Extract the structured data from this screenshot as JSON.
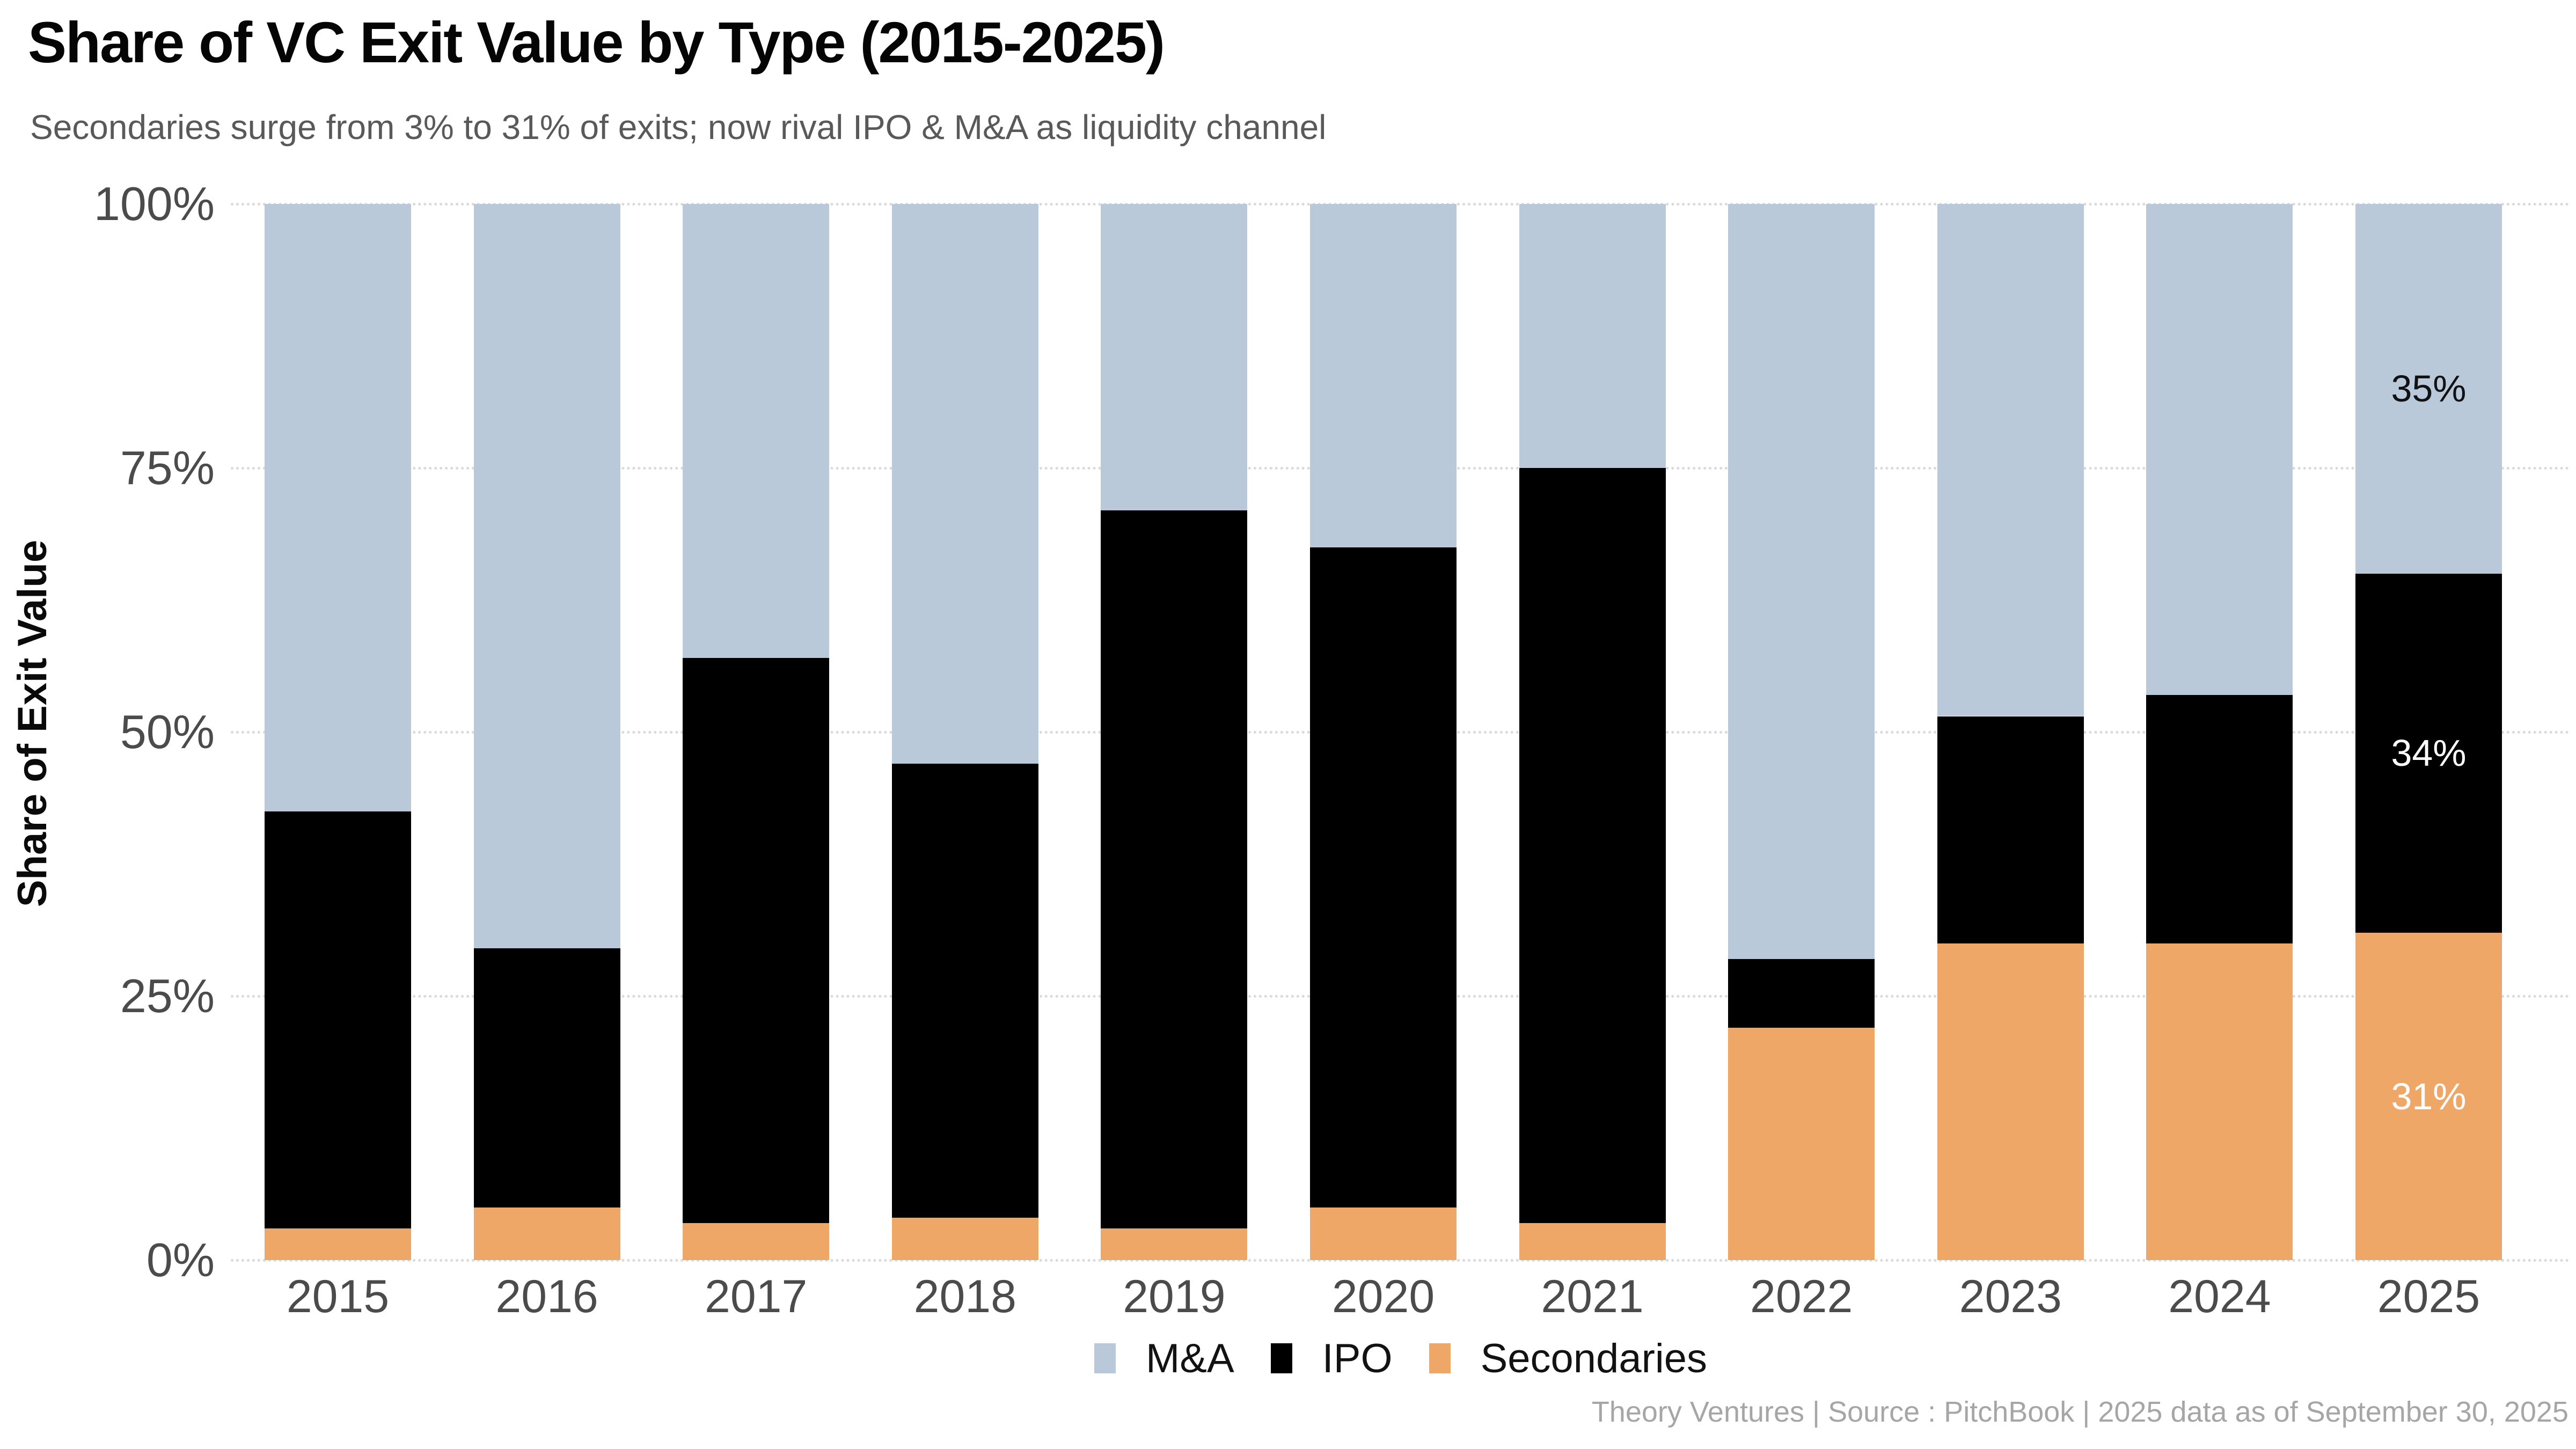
{
  "header": {
    "title": "Share of VC Exit Value by Type (2015-2025)",
    "subtitle": "Secondaries surge from 3% to 31% of exits; now rival IPO & M&A as liquidity channel"
  },
  "chart_data": {
    "type": "bar",
    "variant": "stacked-100-percent",
    "title": "Share of VC Exit Value by Type (2015-2025)",
    "xlabel": "",
    "ylabel": "Share of Exit Value",
    "categories": [
      "2015",
      "2016",
      "2017",
      "2018",
      "2019",
      "2020",
      "2021",
      "2022",
      "2023",
      "2024",
      "2025"
    ],
    "series": [
      {
        "name": "Secondaries",
        "color": "#efa768",
        "values": [
          3,
          5,
          3.5,
          4,
          3,
          5,
          3.5,
          22,
          30,
          30,
          31
        ]
      },
      {
        "name": "IPO",
        "color": "#000000",
        "values": [
          39.5,
          24.5,
          53.5,
          43,
          68,
          62.5,
          71.5,
          6.5,
          21.5,
          23.5,
          34
        ]
      },
      {
        "name": "M&A",
        "color": "#b9c9da",
        "values": [
          57.5,
          70.5,
          43,
          53,
          29,
          32.5,
          25,
          71.5,
          48.5,
          46.5,
          35
        ]
      }
    ],
    "stack_order": "bottom-to-top",
    "ylim": [
      0,
      100
    ],
    "y_ticks": [
      {
        "value": 100,
        "label": "100%"
      },
      {
        "value": 75,
        "label": "75%"
      },
      {
        "value": 50,
        "label": "50%"
      },
      {
        "value": 25,
        "label": "25%"
      },
      {
        "value": 0,
        "label": "0%"
      }
    ],
    "grid": {
      "horizontal": true,
      "style": "dotted",
      "color": "#d9d9d9"
    },
    "legend": {
      "position": "bottom",
      "items": [
        "M&A",
        "IPO",
        "Secondaries"
      ]
    },
    "bar_labels": {
      "category": "2025",
      "items": [
        {
          "series": "M&A",
          "text": "35%",
          "text_color": "#111111"
        },
        {
          "series": "IPO",
          "text": "34%",
          "text_color": "#ffffff"
        },
        {
          "series": "Secondaries",
          "text": "31%",
          "text_color": "#ffffff"
        }
      ]
    }
  },
  "footer": {
    "attribution": "Theory Ventures | Source : PitchBook | 2025 data as of September 30, 2025"
  }
}
